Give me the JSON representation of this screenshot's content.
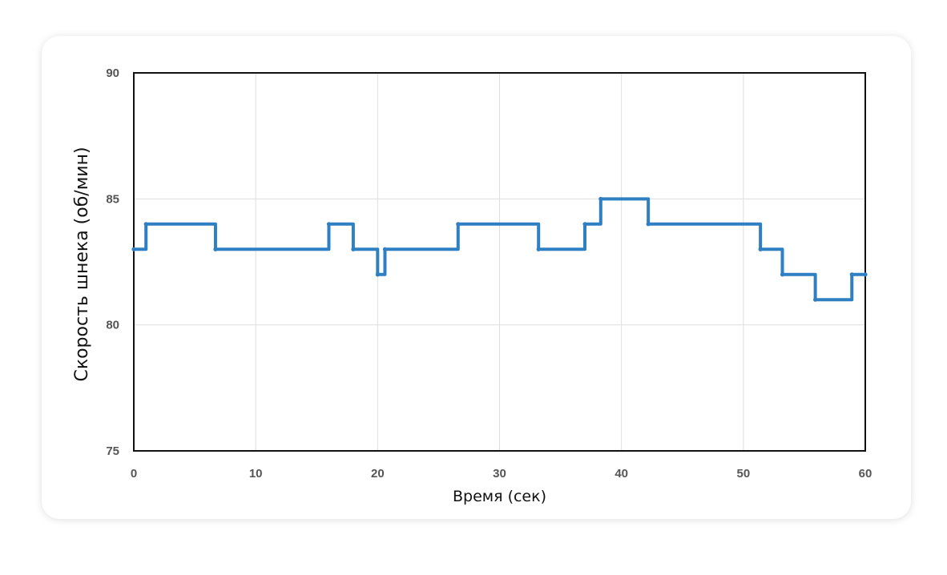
{
  "chart_data": {
    "type": "line",
    "step": true,
    "title": "",
    "xlabel": "Время (сек)",
    "ylabel": "Скорость шнека (об/мин)",
    "xlim": [
      0,
      60
    ],
    "ylim": [
      75,
      90
    ],
    "xticks": [
      0,
      10,
      20,
      30,
      40,
      50,
      60
    ],
    "yticks": [
      75,
      80,
      85,
      90
    ],
    "xtick_labels": [
      "0",
      "10",
      "20",
      "30",
      "40",
      "50",
      "60"
    ],
    "ytick_labels": [
      "75",
      "80",
      "85",
      "90"
    ],
    "grid": true,
    "legend": "none",
    "series": [
      {
        "color": "#2f7fc3",
        "x": [
          0,
          1,
          6.7,
          16,
          18,
          20,
          20.6,
          26.6,
          33.2,
          37,
          38.3,
          42.2,
          51.4,
          53.2,
          55.9,
          58.9,
          60
        ],
        "y": [
          83,
          84,
          83,
          84,
          83,
          82,
          83,
          84,
          83,
          84,
          85,
          84,
          83,
          82,
          81,
          82,
          82
        ]
      }
    ]
  }
}
